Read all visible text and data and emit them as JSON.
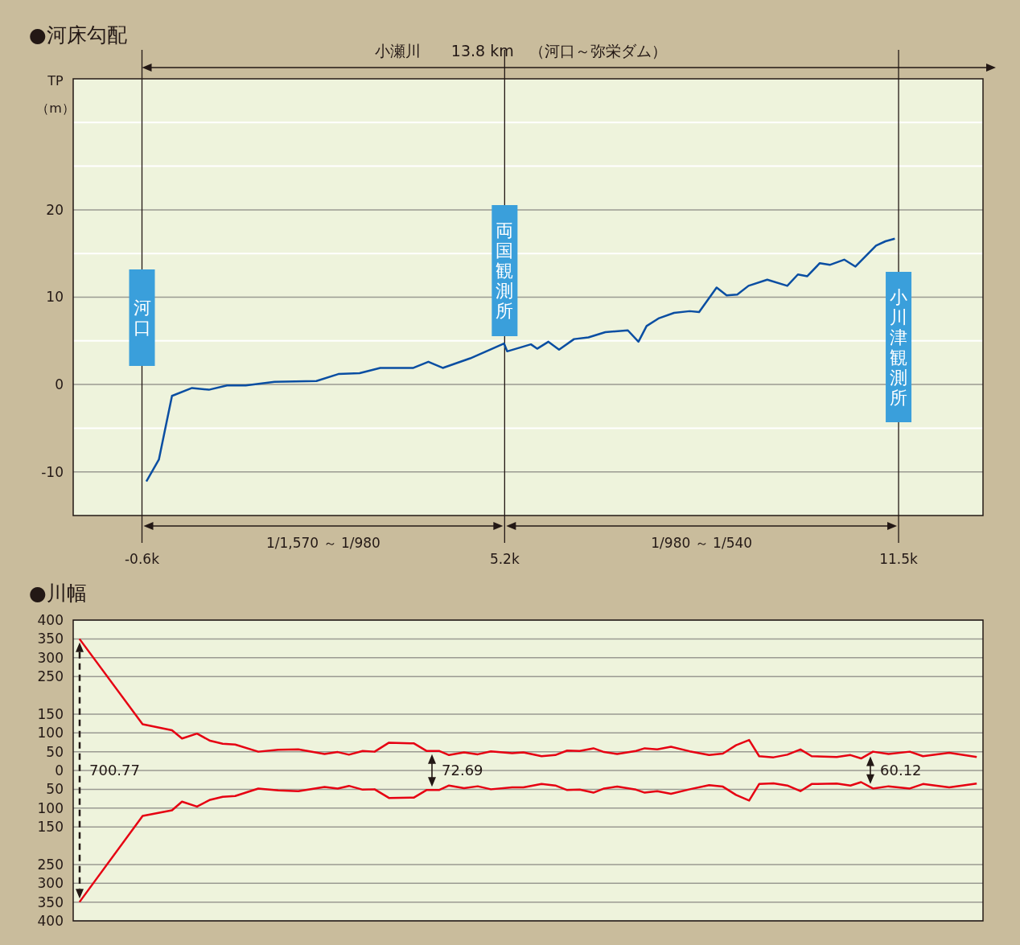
{
  "chart_data": [
    {
      "type": "line",
      "title": "●河床勾配",
      "ylabel": "TP\n（m）",
      "x": [
        -0.53,
        -0.33,
        -0.12,
        0.2,
        0.47,
        0.76,
        1.06,
        1.52,
        2.19,
        2.54,
        2.88,
        3.21,
        3.74,
        3.98,
        4.21,
        4.65,
        5.19,
        5.24,
        5.48,
        5.62,
        5.72,
        5.9,
        6.07,
        6.31,
        6.54,
        6.81,
        7.17,
        7.34,
        7.47,
        7.67,
        7.91,
        8.16,
        8.31,
        8.59,
        8.75,
        8.92,
        9.1,
        9.4,
        9.72,
        9.89,
        10.04,
        10.24,
        10.4,
        10.63,
        10.81,
        11.14,
        11.29,
        11.44
      ],
      "series": [
        {
          "color": "#0a4ea2",
          "values": [
            -11.1,
            -8.6,
            -1.3,
            -0.4,
            -0.6,
            -0.1,
            -0.1,
            0.3,
            0.4,
            1.2,
            1.3,
            1.9,
            1.9,
            2.6,
            1.9,
            3.0,
            4.7,
            3.8,
            4.3,
            4.6,
            4.1,
            4.9,
            4.0,
            5.2,
            5.4,
            6.0,
            6.2,
            4.9,
            6.7,
            7.6,
            8.2,
            8.4,
            8.3,
            11.1,
            10.2,
            10.3,
            11.3,
            12.0,
            11.3,
            12.6,
            12.4,
            13.9,
            13.7,
            14.3,
            13.5,
            15.9,
            16.4,
            16.7
          ]
        }
      ],
      "xlim": [
        -1.7,
        12.85
      ],
      "xticks": [
        {
          "value": -0.6,
          "label": "-0.6k"
        },
        {
          "value": 5.2,
          "label": "5.2k"
        },
        {
          "value": 11.5,
          "label": "11.5k"
        }
      ],
      "ylim": [
        -15,
        35
      ],
      "yticks": [
        -10,
        {
          "value": -5,
          "label": null
        },
        0,
        {
          "value": 5,
          "label": null
        },
        10,
        {
          "value": 15,
          "label": null
        },
        20,
        {
          "value": 25,
          "label": null
        },
        {
          "value": 30,
          "label": null
        }
      ],
      "grid": "y",
      "marker": "none",
      "line_style": "solid",
      "ref_lines": [
        {
          "axis": "x",
          "value": -0.6,
          "label": "河口"
        },
        {
          "axis": "x",
          "value": 5.2,
          "label": "両国観測所"
        },
        {
          "axis": "x",
          "value": 11.5,
          "label": "小川津観測所"
        }
      ],
      "annotations": [
        "小瀬川　　13.8 km　（河口～弥栄ダム）",
        "1/1,570 ～ 1/980",
        "1/980 ～ 1/540"
      ]
    },
    {
      "type": "line",
      "title": "●川幅",
      "x": [
        -1.6,
        -0.59,
        -0.12,
        0.04,
        0.28,
        0.49,
        0.69,
        0.89,
        1.26,
        1.58,
        1.9,
        2.32,
        2.53,
        2.71,
        2.93,
        3.12,
        3.35,
        3.75,
        3.95,
        4.15,
        4.31,
        4.55,
        4.77,
        4.98,
        5.32,
        5.5,
        5.79,
        6.01,
        6.2,
        6.4,
        6.62,
        6.79,
        7.0,
        7.3,
        7.44,
        7.64,
        7.86,
        8.16,
        8.47,
        8.69,
        8.9,
        9.11,
        9.27,
        9.5,
        9.72,
        9.93,
        10.11,
        10.51,
        10.73,
        10.9,
        11.09,
        11.34,
        11.68,
        11.89,
        12.31,
        12.75
      ],
      "series": [
        {
          "color": "#e60012",
          "values": [
            350,
            123,
            107,
            85,
            98,
            79,
            71,
            69,
            50,
            55,
            56,
            44,
            49,
            42,
            52,
            50,
            74,
            72,
            52,
            52,
            41,
            48,
            43,
            51,
            46,
            48,
            38,
            41,
            53,
            52,
            59,
            49,
            44,
            52,
            59,
            56,
            63,
            51,
            41,
            45,
            67,
            81,
            38,
            35,
            42,
            56,
            38,
            36,
            41,
            32,
            50,
            44,
            50,
            38,
            47,
            36
          ]
        },
        {
          "color": "#e60012",
          "values": [
            -350,
            -121,
            -106,
            -83,
            -96,
            -78,
            -70,
            -68,
            -48,
            -53,
            -55,
            -44,
            -48,
            -41,
            -51,
            -50,
            -73,
            -72,
            -52,
            -52,
            -40,
            -47,
            -42,
            -50,
            -45,
            -45,
            -36,
            -40,
            -52,
            -51,
            -59,
            -48,
            -43,
            -51,
            -59,
            -55,
            -62,
            -50,
            -39,
            -43,
            -65,
            -80,
            -36,
            -34,
            -40,
            -55,
            -36,
            -35,
            -40,
            -31,
            -48,
            -42,
            -48,
            -36,
            -45,
            -35
          ]
        }
      ],
      "xlim": [
        -1.7,
        12.85
      ],
      "ylim": [
        -400,
        400
      ],
      "yticks": [
        400,
        350,
        300,
        250,
        150,
        100,
        50,
        0,
        {
          "value": -50,
          "label": "50"
        },
        {
          "value": -100,
          "label": "100"
        },
        {
          "value": -150,
          "label": "150"
        },
        {
          "value": -250,
          "label": "250"
        },
        {
          "value": -300,
          "label": "300"
        },
        {
          "value": -350,
          "label": "350"
        },
        {
          "value": -400,
          "label": "400"
        }
      ],
      "tick_labels": "y",
      "grid": "y",
      "marker": "none",
      "line_style": "solid",
      "annotations": [
        "700.77",
        "72.69",
        "60.12"
      ]
    }
  ]
}
